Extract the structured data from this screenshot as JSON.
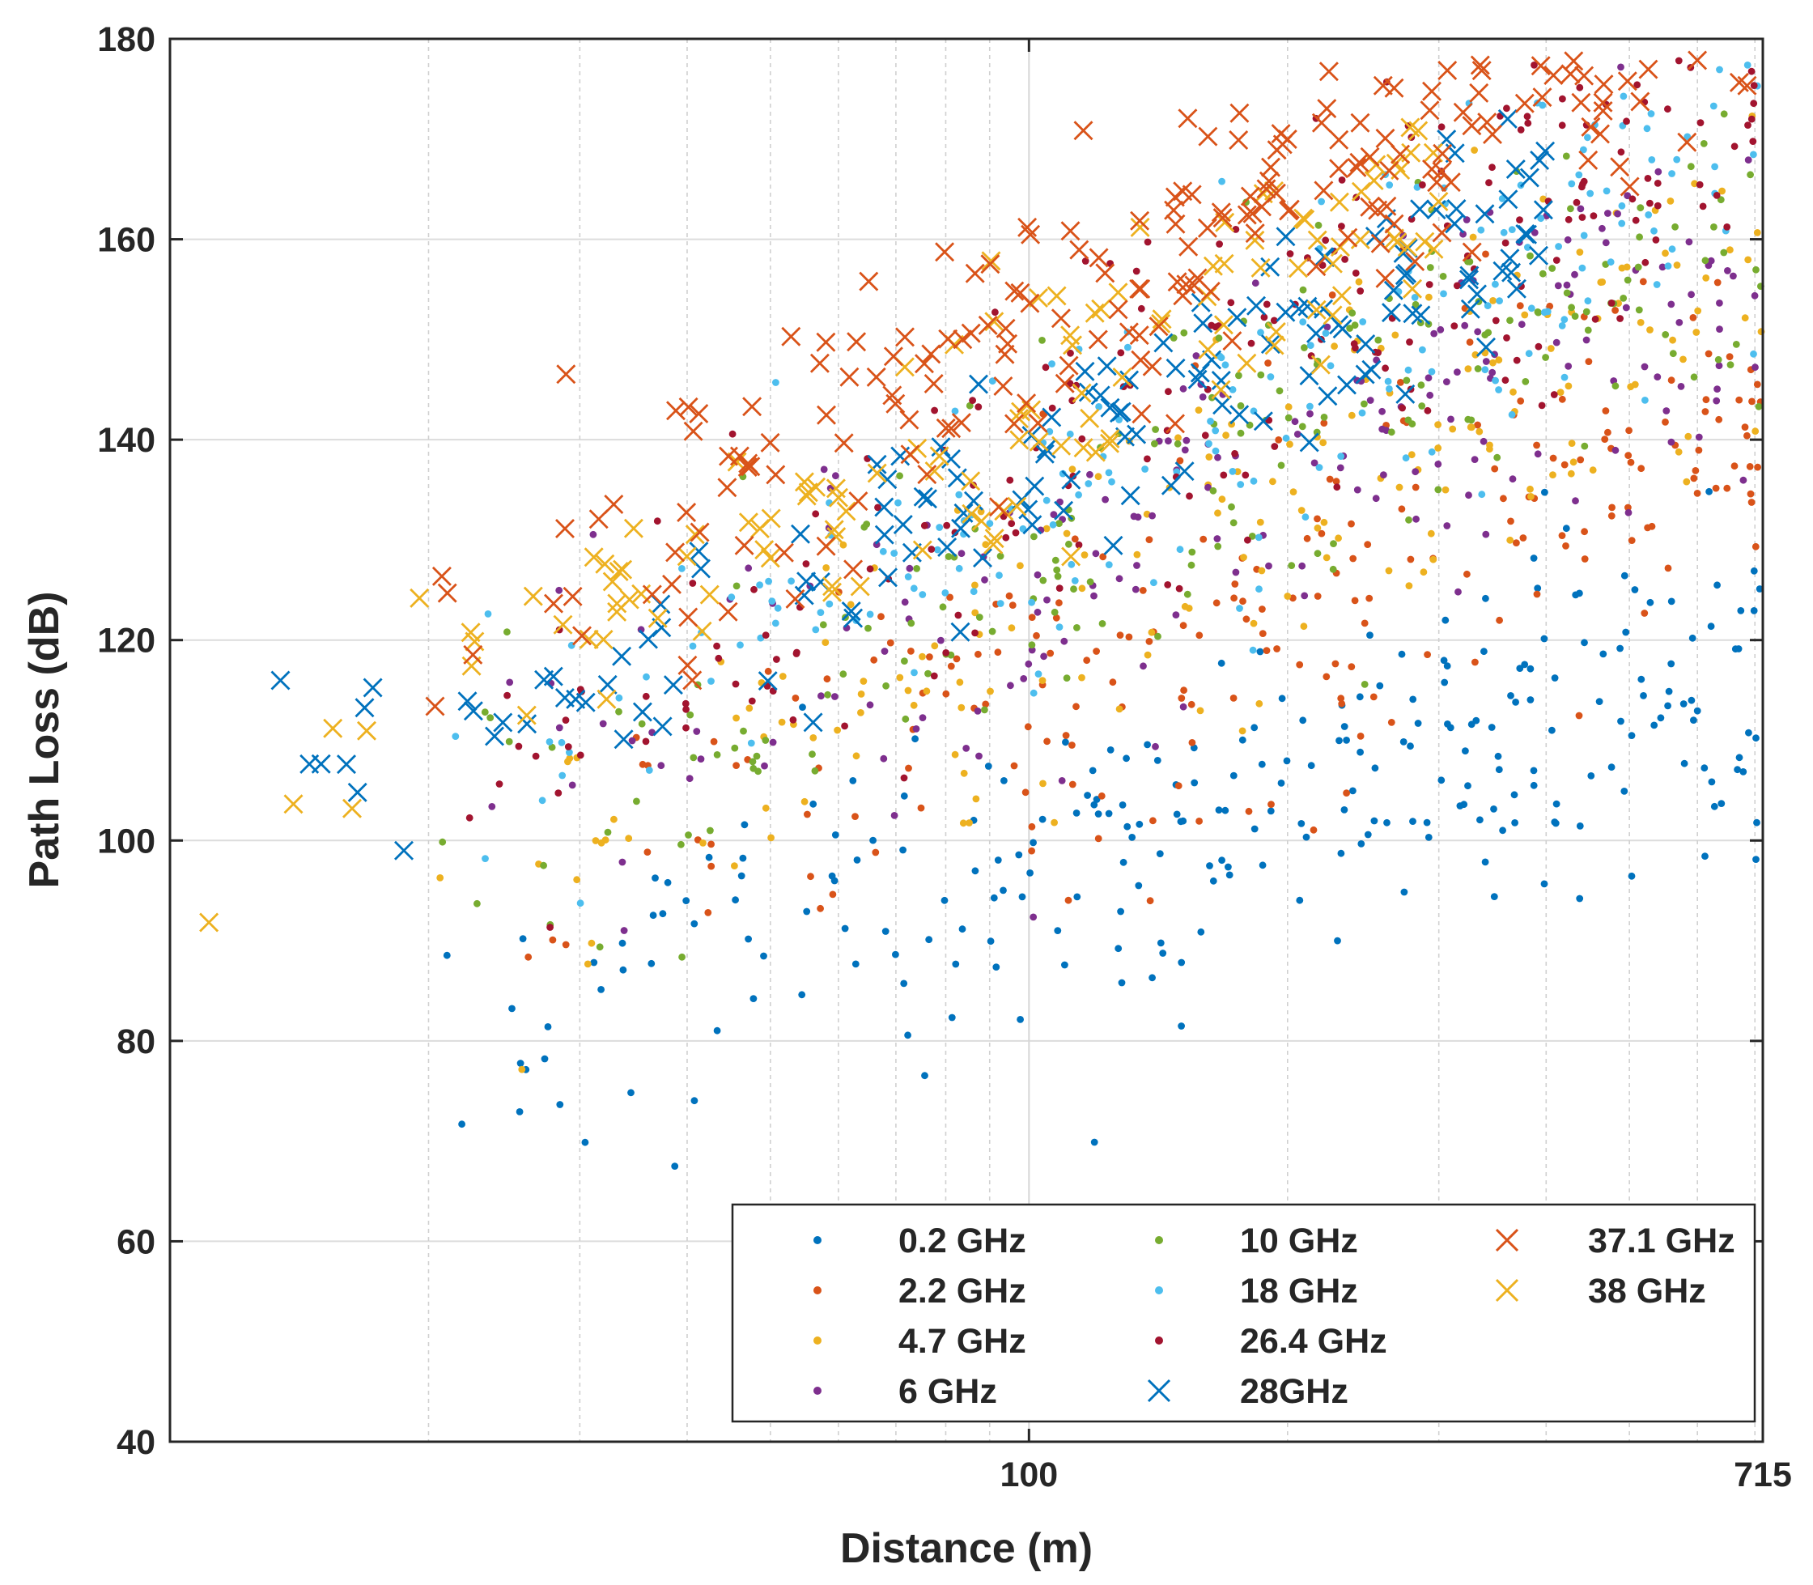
{
  "chart_data": {
    "type": "scatter",
    "title": "",
    "xlabel": "Distance (m)",
    "ylabel": "Path Loss (dB)",
    "xscale": "log",
    "xlim": [
      10,
      715
    ],
    "ylim": [
      40,
      180
    ],
    "grid": true,
    "legend_position": "bottom-right",
    "x_tick_labels": [
      {
        "value": 100,
        "label": "100"
      },
      {
        "value": 715,
        "label": "715"
      }
    ],
    "x_grid_values": [
      20,
      30,
      40,
      50,
      60,
      70,
      80,
      90,
      100,
      200,
      300,
      400,
      500,
      600,
      700
    ],
    "y_ticks": [
      40,
      60,
      80,
      100,
      120,
      140,
      160,
      180
    ],
    "series": [
      {
        "name": "0.2 GHz",
        "marker": "dot",
        "color": "#0072BD",
        "trend": {
          "intercept": 47,
          "slope": 25,
          "spread": 9,
          "xmin": 20,
          "xmax": 715,
          "n": 260
        }
      },
      {
        "name": "2.2 GHz",
        "marker": "dot",
        "color": "#D95319",
        "trend": {
          "intercept": 47,
          "slope": 34,
          "spread": 10,
          "xmin": 20,
          "xmax": 715,
          "n": 220
        }
      },
      {
        "name": "4.7 GHz",
        "marker": "dot",
        "color": "#EDB120",
        "trend": {
          "intercept": 47,
          "slope": 38,
          "spread": 10,
          "xmin": 20,
          "xmax": 715,
          "n": 200
        }
      },
      {
        "name": "6 GHz",
        "marker": "dot",
        "color": "#7E2F8E",
        "trend": {
          "intercept": 47,
          "slope": 39,
          "spread": 10,
          "xmin": 20,
          "xmax": 715,
          "n": 200
        }
      },
      {
        "name": "10 GHz",
        "marker": "dot",
        "color": "#77AC30",
        "trend": {
          "intercept": 47,
          "slope": 41,
          "spread": 9,
          "xmin": 20,
          "xmax": 715,
          "n": 200
        }
      },
      {
        "name": "18 GHz",
        "marker": "dot",
        "color": "#4DBEEE",
        "trend": {
          "intercept": 47,
          "slope": 43,
          "spread": 9,
          "xmin": 20,
          "xmax": 715,
          "n": 200
        }
      },
      {
        "name": "26.4 GHz",
        "marker": "dot",
        "color": "#A2142F",
        "trend": {
          "intercept": 47,
          "slope": 45,
          "spread": 9,
          "xmin": 20,
          "xmax": 715,
          "n": 220
        }
      },
      {
        "name": "28GHz",
        "marker": "x",
        "color": "#0072BD",
        "trend": {
          "intercept": 55,
          "slope": 42,
          "spread": 6,
          "xmin": 10,
          "xmax": 400,
          "n": 150
        }
      },
      {
        "name": "37.1 GHz",
        "marker": "x",
        "color": "#D95319",
        "trend": {
          "intercept": 55,
          "slope": 48,
          "spread": 7,
          "xmin": 20,
          "xmax": 715,
          "n": 320
        }
      },
      {
        "name": "38 GHz",
        "marker": "x",
        "color": "#EDB120",
        "trend": {
          "intercept": 60,
          "slope": 42,
          "spread": 6,
          "xmin": 10,
          "xmax": 300,
          "n": 130
        }
      }
    ]
  }
}
